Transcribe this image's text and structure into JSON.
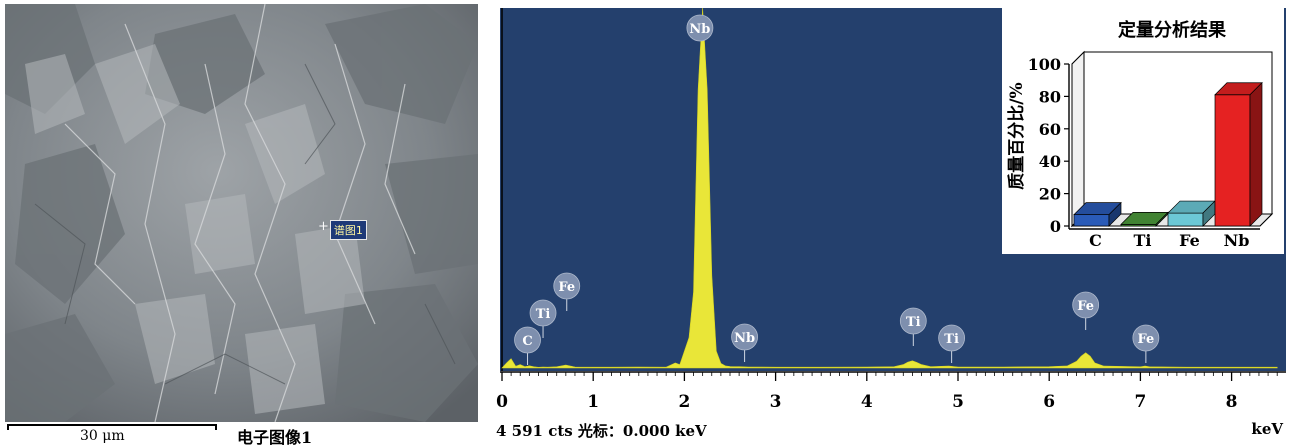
{
  "sem_image": {
    "scale_bar_label": "30 μm",
    "caption": "电子图像1",
    "marker_label": "谱图1"
  },
  "spectrum": {
    "footer": "4 591 cts   光标：0.000 keV",
    "unit": "keV"
  },
  "colors": {
    "spectrum_bg": "#24406d",
    "spectrum_fill": "#e9e638",
    "peak_label_bg": "#7e8fae"
  },
  "chart_data": [
    {
      "type": "area",
      "title": "",
      "xlabel": "keV",
      "ylabel": "",
      "xlim": [
        0,
        8.5
      ],
      "x_ticks": [
        0,
        1,
        2,
        3,
        4,
        5,
        6,
        7,
        8
      ],
      "series": [
        {
          "x": [
            0,
            0.05,
            0.1,
            0.15,
            0.2,
            0.25,
            0.3,
            0.35,
            0.4,
            0.45,
            0.5,
            0.6,
            0.7,
            0.8,
            1.0,
            1.2,
            1.5,
            1.8,
            1.9,
            1.95,
            2.0,
            2.05,
            2.1,
            2.15,
            2.2,
            2.25,
            2.3,
            2.35,
            2.4,
            2.45,
            2.5,
            2.6,
            2.7,
            3.0,
            3.5,
            4.0,
            4.3,
            4.4,
            4.45,
            4.5,
            4.55,
            4.6,
            4.7,
            4.9,
            5.0,
            5.5,
            6.0,
            6.2,
            6.3,
            6.35,
            6.4,
            6.45,
            6.5,
            6.6,
            7.0,
            7.05,
            7.1,
            7.5,
            8.0,
            8.5
          ],
          "y": [
            0,
            60,
            110,
            20,
            40,
            16,
            26,
            14,
            8,
            12,
            10,
            14,
            34,
            12,
            10,
            10,
            12,
            10,
            60,
            40,
            200,
            360,
            900,
            3300,
            4591,
            3300,
            1100,
            200,
            55,
            25,
            18,
            15,
            12,
            10,
            10,
            12,
            15,
            40,
            70,
            85,
            65,
            40,
            15,
            22,
            12,
            12,
            15,
            25,
            80,
            140,
            180,
            140,
            60,
            22,
            14,
            22,
            14,
            10,
            10,
            10
          ]
        }
      ],
      "peak_labels": [
        {
          "element": "Nb",
          "x": 2.17
        },
        {
          "element": "C",
          "x": 0.28
        },
        {
          "element": "Ti",
          "x": 0.45
        },
        {
          "element": "Fe",
          "x": 0.71
        },
        {
          "element": "Nb",
          "x": 2.66
        },
        {
          "element": "Ti",
          "x": 4.51
        },
        {
          "element": "Ti",
          "x": 4.93
        },
        {
          "element": "Fe",
          "x": 6.4
        },
        {
          "element": "Fe",
          "x": 7.06
        }
      ]
    },
    {
      "type": "bar",
      "title": "定量分析结果",
      "ylabel": "质量百分比/%",
      "xlabel": "",
      "ylim": [
        0,
        100
      ],
      "y_ticks": [
        0,
        20,
        40,
        60,
        80,
        100
      ],
      "categories": [
        "C",
        "Ti",
        "Fe",
        "Nb"
      ],
      "values": [
        7,
        1,
        8,
        81
      ],
      "colors": [
        "#2a5bb8",
        "#4c9a3c",
        "#6cc8d6",
        "#e52222"
      ]
    }
  ]
}
